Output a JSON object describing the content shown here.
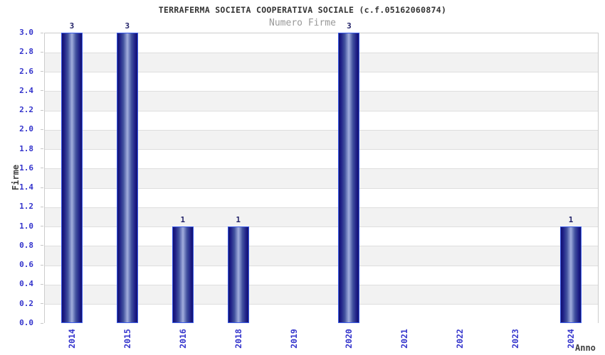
{
  "header": {
    "title": "TERRAFERMA SOCIETA COOPERATIVA SOCIALE (c.f.05162060874)",
    "subtitle": "Numero Firme"
  },
  "chart_data": {
    "type": "bar",
    "title": "TERRAFERMA SOCIETA COOPERATIVA SOCIALE (c.f.05162060874)",
    "subtitle": "Numero Firme",
    "categories": [
      "2014",
      "2015",
      "2016",
      "2018",
      "2019",
      "2020",
      "2021",
      "2022",
      "2023",
      "2024"
    ],
    "values": [
      3,
      3,
      1,
      1,
      0,
      3,
      0,
      0,
      0,
      1
    ],
    "bar_value_labels": [
      "3",
      "3",
      "1",
      "1",
      "",
      "3",
      "",
      "",
      "",
      "1"
    ],
    "xlabel": "Anno",
    "ylabel": "Firme",
    "ylim": [
      0,
      3.0
    ],
    "ytick_step": 0.2,
    "yticks": [
      "0.0",
      "0.2",
      "0.4",
      "0.6",
      "0.8",
      "1.0",
      "1.2",
      "1.4",
      "1.6",
      "1.8",
      "2.0",
      "2.2",
      "2.4",
      "2.6",
      "2.8",
      "3.0"
    ],
    "legend_position": "none",
    "grid": "alternating white/gray horizontal bands every 0.2 with light gridlines",
    "colors": {
      "bar_dark": "#12126f",
      "bar_mid": "#1c1c85",
      "bar_light": "#a2aede",
      "bar_outline": "#3a5ae8",
      "tick_label": "#3333cc",
      "value_label": "#1f1f66",
      "axis_label": "#404040",
      "title": "#333333",
      "subtitle": "#999999",
      "band_gray": "#f2f2f2",
      "band_white": "#ffffff",
      "gridline": "#dedede",
      "plot_border": "#cccccc"
    }
  }
}
